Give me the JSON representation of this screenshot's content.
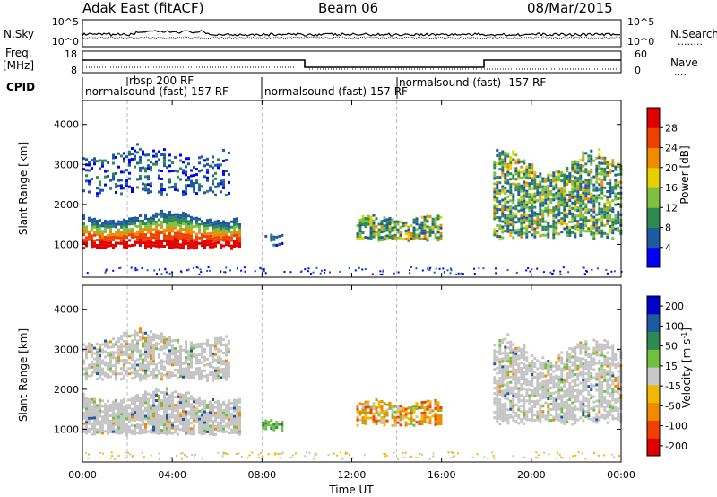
{
  "header": {
    "title": "Adak East (fitACF)",
    "beam": "Beam 06",
    "date": "08/Mar/2015"
  },
  "strip_labels": {
    "nsky": "N.Sky",
    "nsearch": "N.Search",
    "nsearch_dots": "........",
    "freq": "Freq.",
    "freq_unit": "[MHz]",
    "nave": "Nave",
    "nave_dots": "....",
    "cpid": "CPID"
  },
  "noise_axis": {
    "left_ticks": [
      "10^5",
      "10^0"
    ],
    "right_ticks": [
      "10^5",
      "10^0"
    ]
  },
  "freq_axis": {
    "left_ticks": [
      "18",
      "8"
    ],
    "right_ticks": [
      "60",
      "0"
    ]
  },
  "cpid_segments": [
    {
      "row1": "",
      "row2": "normalsound (fast) 157 RF",
      "start_hour": 0
    },
    {
      "row1": "rbsp 200 RF",
      "row2": "",
      "start_hour": 2
    },
    {
      "row1": "",
      "row2": "normalsound (fast) 157 RF",
      "start_hour": 7.75
    },
    {
      "row1": "",
      "row2": "normalsound (fast) -157 RF",
      "start_hour": 14
    }
  ],
  "chart_data": [
    {
      "type": "heatmap",
      "name": "power-panel",
      "title": "",
      "xlabel": "Time UT",
      "ylabel": "Slant Range [km]",
      "xlim": [
        0,
        24
      ],
      "ylim": [
        180,
        4600
      ],
      "x_ticks": [
        "00:00",
        "04:00",
        "08:00",
        "12:00",
        "16:00",
        "20:00",
        "00:00"
      ],
      "y_ticks": [
        "1000",
        "2000",
        "3000",
        "4000"
      ],
      "colorbar": {
        "label": "Power [dB]",
        "ticks": [
          "28",
          "24",
          "20",
          "16",
          "12",
          "8",
          "4"
        ],
        "colors": [
          "#0000ff",
          "#1e5aa0",
          "#2f8a50",
          "#7fc040",
          "#e8d000",
          "#f08a00",
          "#f04000",
          "#e00000"
        ]
      },
      "regions": [
        {
          "t": [
            0,
            7.0
          ],
          "r": [
            900,
            1900
          ],
          "level": "strong",
          "desc": "main band"
        },
        {
          "t": [
            0,
            6.5
          ],
          "r": [
            2200,
            3600
          ],
          "level": "weak",
          "desc": "upper scatter"
        },
        {
          "t": [
            8.0,
            8.9
          ],
          "r": [
            1000,
            1300
          ],
          "level": "weak",
          "desc": "patch"
        },
        {
          "t": [
            12.2,
            16.0
          ],
          "r": [
            1100,
            1800
          ],
          "level": "medium",
          "desc": "mid patch"
        },
        {
          "t": [
            18.3,
            24
          ],
          "r": [
            1100,
            3500
          ],
          "level": "medium",
          "desc": "evening band"
        }
      ]
    },
    {
      "type": "heatmap",
      "name": "velocity-panel",
      "title": "",
      "xlabel": "Time UT",
      "ylabel": "Slant Range [km]",
      "xlim": [
        0,
        24
      ],
      "ylim": [
        180,
        4600
      ],
      "x_ticks": [
        "00:00",
        "04:00",
        "08:00",
        "12:00",
        "16:00",
        "20:00",
        "00:00"
      ],
      "y_ticks": [
        "1000",
        "2000",
        "3000",
        "4000"
      ],
      "colorbar": {
        "label": "Velocity [m s^-1]",
        "ticks": [
          "200",
          "100",
          "50",
          "15",
          "-15",
          "-50",
          "-100",
          "-200"
        ],
        "colors": [
          "#e00000",
          "#f04000",
          "#f08a00",
          "#f0b800",
          "#c8c8c8",
          "#70c040",
          "#2f8a50",
          "#1e5aa0",
          "#0000cc"
        ]
      },
      "regions": [
        {
          "t": [
            0,
            7.0
          ],
          "r": [
            850,
            2100
          ],
          "level": "ground",
          "desc": "low velocity band"
        },
        {
          "t": [
            0,
            6.5
          ],
          "r": [
            2200,
            3600
          ],
          "level": "ground",
          "desc": "upper scatter"
        },
        {
          "t": [
            8.0,
            8.9
          ],
          "r": [
            1000,
            1300
          ],
          "level": "positive",
          "desc": "green patch"
        },
        {
          "t": [
            12.2,
            16.0
          ],
          "r": [
            1100,
            1800
          ],
          "level": "negative",
          "desc": "orange patch"
        },
        {
          "t": [
            18.3,
            24
          ],
          "r": [
            1100,
            3500
          ],
          "level": "ground",
          "desc": "evening band"
        }
      ]
    }
  ]
}
